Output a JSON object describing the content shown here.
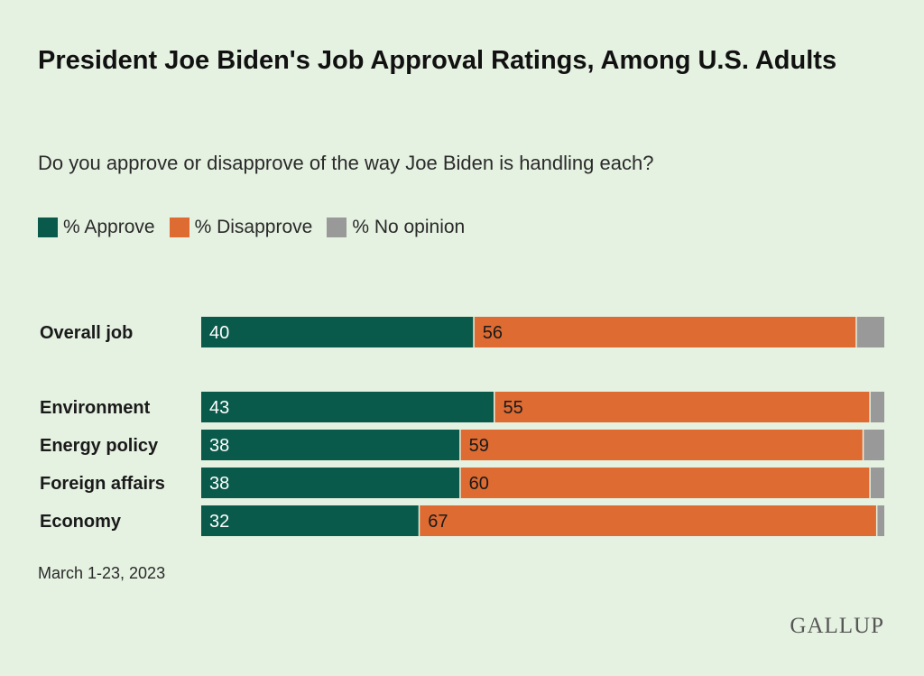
{
  "header": {
    "title": "President Joe Biden's Job Approval Ratings, Among U.S. Adults",
    "subtitle": "Do you approve or disapprove of the way Joe Biden is handling each?"
  },
  "legend": [
    {
      "label": "% Approve",
      "color": "#0a5a4b"
    },
    {
      "label": "% Disapprove",
      "color": "#dd6b32"
    },
    {
      "label": "% No opinion",
      "color": "#999999"
    }
  ],
  "chart_data": {
    "type": "bar",
    "orientation": "horizontal",
    "stacked": true,
    "categories": [
      "Overall job",
      "Environment",
      "Energy policy",
      "Foreign affairs",
      "Economy"
    ],
    "series": [
      {
        "name": "% Approve",
        "values": [
          40,
          43,
          38,
          38,
          32
        ],
        "color": "#0a5a4b"
      },
      {
        "name": "% Disapprove",
        "values": [
          56,
          55,
          59,
          60,
          67
        ],
        "color": "#dd6b32"
      },
      {
        "name": "% No opinion",
        "values": [
          4,
          2,
          3,
          2,
          1
        ],
        "color": "#999999"
      }
    ],
    "title": "President Joe Biden's Job Approval Ratings, Among U.S. Adults",
    "xlim": [
      0,
      100
    ],
    "legend_position": "top-left",
    "grid": false
  },
  "footer": {
    "source": "March 1-23, 2023",
    "logo": "GALLUP"
  }
}
